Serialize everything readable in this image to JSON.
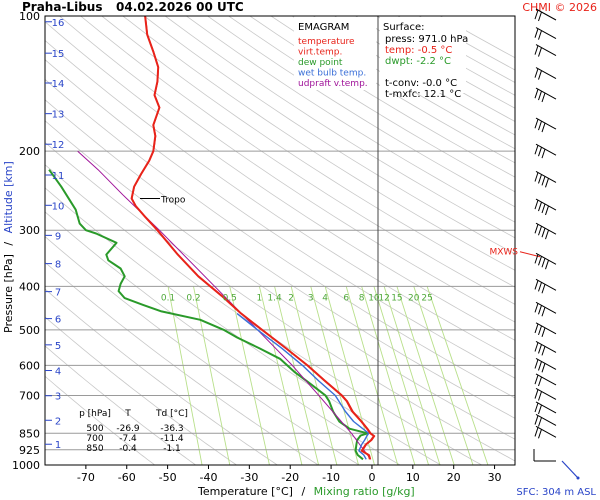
{
  "header": {
    "station": "Praha-Libus",
    "datetime": "04.02.2026 00 UTC",
    "copyright": "CHMI © 2026"
  },
  "axes": {
    "ylabel_pressure": "Pressure [hPa]",
    "ylabel_sep": "/",
    "ylabel_altitude": "Altitude [km]",
    "xlabel_temp": "Temperature [°C]",
    "xlabel_sep": "/",
    "xlabel_mix": "Mixing ratio [g/kg]"
  },
  "legend": {
    "title": "EMAGRAM",
    "items": [
      {
        "label": "temperature",
        "color": "#e8231a"
      },
      {
        "label": "virt.temp.",
        "color": "#e8231a"
      },
      {
        "label": "dew point",
        "color": "#2a9a2a"
      },
      {
        "label": "wet bulb temp.",
        "color": "#3a6fd8"
      },
      {
        "label": "udpraft v.temp.",
        "color": "#a0149a"
      }
    ]
  },
  "surface": {
    "title": "Surface:",
    "lines": [
      {
        "text": "press: 971.0 hPa",
        "color": "#000000"
      },
      {
        "text": "temp: -0.5 °C",
        "color": "#e8231a"
      },
      {
        "text": "dwpt: -2.2 °C",
        "color": "#2a9a2a"
      },
      {
        "text": "",
        "color": "#000000"
      },
      {
        "text": "t-conv: -0.0 °C",
        "color": "#000000"
      },
      {
        "text": "t-mxfc: 12.1 °C",
        "color": "#000000"
      }
    ]
  },
  "table": {
    "headers": [
      "p [hPa]",
      "T",
      "Td [°C]"
    ],
    "rows": [
      [
        "500",
        "-26.9",
        "-36.3"
      ],
      [
        "700",
        "-7.4",
        "-11.4"
      ],
      [
        "850",
        "-0.4",
        "-1.1"
      ]
    ]
  },
  "annotations": {
    "tropo": "Tropo",
    "mxws": "MXWS",
    "sfc": "SFC: 304 m ASL"
  },
  "chart_data": {
    "type": "line",
    "title": "Praha-Libus 04.02.2026 00 UTC",
    "xlabel": "Temperature [°C] / Mixing ratio [g/kg]",
    "ylabel": "Pressure [hPa] / Altitude [km]",
    "xlim": [
      -80,
      35
    ],
    "ylim": [
      1000,
      100
    ],
    "y_scale": "log",
    "x_ticks": [
      -70,
      -60,
      -50,
      -40,
      -30,
      -20,
      -10,
      0,
      10,
      20,
      30
    ],
    "p_ticks": [
      100,
      200,
      300,
      400,
      500,
      600,
      700,
      850,
      925,
      1000
    ],
    "p_grid": [
      100,
      200,
      300,
      400,
      500,
      600,
      700,
      850,
      925,
      1000
    ],
    "altitude_km": [
      {
        "km": 1,
        "p": 899
      },
      {
        "km": 2,
        "p": 795
      },
      {
        "km": 3,
        "p": 701
      },
      {
        "km": 4,
        "p": 616
      },
      {
        "km": 5,
        "p": 540
      },
      {
        "km": 6,
        "p": 472
      },
      {
        "km": 7,
        "p": 411
      },
      {
        "km": 8,
        "p": 356
      },
      {
        "km": 9,
        "p": 308
      },
      {
        "km": 10,
        "p": 264
      },
      {
        "km": 11,
        "p": 226
      },
      {
        "km": 12,
        "p": 193
      },
      {
        "km": 13,
        "p": 165
      },
      {
        "km": 14,
        "p": 141
      },
      {
        "km": 15,
        "p": 121
      },
      {
        "km": 16,
        "p": 103
      }
    ],
    "mixing_ratio_labels": [
      "0.1",
      "0.2",
      "0.5",
      "1",
      "1.4",
      "2",
      "3",
      "4",
      "6",
      "8",
      "10",
      "12",
      "15",
      "20",
      "25"
    ],
    "mixing_ratio_values": [
      0.1,
      0.2,
      0.5,
      1,
      1.4,
      2,
      3,
      4,
      6,
      8,
      10,
      12,
      15,
      20,
      25
    ],
    "series": [
      {
        "name": "temperature",
        "color": "#e8231a",
        "points": [
          [
            971,
            -0.5
          ],
          [
            950,
            -0.8
          ],
          [
            930,
            -2.5
          ],
          [
            900,
            -1.5
          ],
          [
            880,
            -0.2
          ],
          [
            862,
            0.5
          ],
          [
            850,
            -0.4
          ],
          [
            830,
            -1.2
          ],
          [
            800,
            -2.6
          ],
          [
            760,
            -4.8
          ],
          [
            720,
            -6.2
          ],
          [
            700,
            -7.4
          ],
          [
            650,
            -11.5
          ],
          [
            600,
            -15.8
          ],
          [
            550,
            -21.0
          ],
          [
            500,
            -26.9
          ],
          [
            460,
            -32.0
          ],
          [
            420,
            -36.8
          ],
          [
            380,
            -42.5
          ],
          [
            340,
            -47.5
          ],
          [
            300,
            -52.5
          ],
          [
            280,
            -55.5
          ],
          [
            265,
            -57.8
          ],
          [
            255,
            -58.8
          ],
          [
            240,
            -58.2
          ],
          [
            225,
            -56.5
          ],
          [
            210,
            -54.5
          ],
          [
            200,
            -53.5
          ],
          [
            185,
            -53.0
          ],
          [
            175,
            -53.5
          ],
          [
            160,
            -52.0
          ],
          [
            150,
            -53.2
          ],
          [
            140,
            -52.5
          ],
          [
            130,
            -52.3
          ],
          [
            120,
            -53.5
          ],
          [
            110,
            -55.0
          ],
          [
            100,
            -55.5
          ]
        ]
      },
      {
        "name": "virt.temp.",
        "color": "#e8231a",
        "points": [
          [
            971,
            -0.3
          ],
          [
            950,
            -0.6
          ],
          [
            930,
            -2.3
          ],
          [
            900,
            -1.3
          ],
          [
            880,
            0.0
          ],
          [
            862,
            0.7
          ],
          [
            850,
            -0.2
          ],
          [
            830,
            -1.0
          ],
          [
            800,
            -2.4
          ],
          [
            760,
            -4.6
          ],
          [
            720,
            -6.0
          ],
          [
            700,
            -7.2
          ],
          [
            650,
            -11.3
          ],
          [
            600,
            -15.6
          ],
          [
            550,
            -20.9
          ],
          [
            500,
            -26.8
          ],
          [
            460,
            -31.9
          ],
          [
            420,
            -36.7
          ],
          [
            380,
            -42.4
          ],
          [
            340,
            -47.4
          ],
          [
            300,
            -52.4
          ],
          [
            280,
            -55.4
          ],
          [
            265,
            -57.7
          ],
          [
            255,
            -58.7
          ],
          [
            240,
            -58.1
          ],
          [
            225,
            -56.4
          ],
          [
            210,
            -54.4
          ],
          [
            200,
            -53.4
          ],
          [
            185,
            -52.9
          ],
          [
            175,
            -53.4
          ],
          [
            160,
            -51.9
          ],
          [
            150,
            -53.1
          ],
          [
            140,
            -52.4
          ],
          [
            130,
            -52.2
          ],
          [
            120,
            -53.4
          ],
          [
            110,
            -54.9
          ],
          [
            100,
            -55.4
          ]
        ]
      },
      {
        "name": "dew point",
        "color": "#2a9a2a",
        "points": [
          [
            971,
            -2.2
          ],
          [
            950,
            -3.5
          ],
          [
            930,
            -4.0
          ],
          [
            900,
            -3.8
          ],
          [
            880,
            -3.6
          ],
          [
            860,
            -2.8
          ],
          [
            850,
            -1.1
          ],
          [
            830,
            -5.5
          ],
          [
            800,
            -8.0
          ],
          [
            760,
            -9.5
          ],
          [
            720,
            -10.5
          ],
          [
            700,
            -11.4
          ],
          [
            660,
            -15.0
          ],
          [
            620,
            -19.0
          ],
          [
            580,
            -22.5
          ],
          [
            550,
            -27.5
          ],
          [
            520,
            -33.0
          ],
          [
            500,
            -36.3
          ],
          [
            475,
            -42.0
          ],
          [
            455,
            -51.5
          ],
          [
            440,
            -56.0
          ],
          [
            425,
            -60.5
          ],
          [
            410,
            -62.0
          ],
          [
            395,
            -61.5
          ],
          [
            380,
            -60.5
          ],
          [
            365,
            -61.5
          ],
          [
            350,
            -64.5
          ],
          [
            340,
            -65.0
          ],
          [
            320,
            -62.5
          ],
          [
            305,
            -67.5
          ],
          [
            300,
            -70.0
          ],
          [
            290,
            -71.5
          ],
          [
            270,
            -72.5
          ],
          [
            240,
            -76.0
          ],
          [
            220,
            -79.0
          ]
        ]
      },
      {
        "name": "wet bulb temp.",
        "color": "#3a6fd8",
        "points": [
          [
            971,
            -1.4
          ],
          [
            950,
            -2.0
          ],
          [
            930,
            -3.2
          ],
          [
            900,
            -2.5
          ],
          [
            880,
            -1.8
          ],
          [
            860,
            -1.2
          ],
          [
            850,
            -0.8
          ],
          [
            800,
            -4.5
          ],
          [
            760,
            -6.5
          ],
          [
            700,
            -9.0
          ],
          [
            650,
            -13.0
          ],
          [
            600,
            -17.0
          ],
          [
            550,
            -22.0
          ],
          [
            500,
            -28.0
          ],
          [
            460,
            -33.0
          ]
        ]
      },
      {
        "name": "udpraft v.temp.",
        "color": "#a0149a",
        "points": [
          [
            971,
            -0.3
          ],
          [
            900,
            -3.0
          ],
          [
            850,
            -5.0
          ],
          [
            800,
            -7.5
          ],
          [
            700,
            -13.0
          ],
          [
            600,
            -19.5
          ],
          [
            500,
            -28.0
          ],
          [
            400,
            -38.5
          ],
          [
            300,
            -52.0
          ],
          [
            250,
            -61.0
          ],
          [
            220,
            -67.0
          ],
          [
            200,
            -72.0
          ]
        ]
      }
    ],
    "winds": [
      {
        "p": 960,
        "barbs": 0,
        "calm": true
      },
      {
        "p": 850,
        "barbs": 2
      },
      {
        "p": 800,
        "barbs": 2
      },
      {
        "p": 750,
        "barbs": 2
      },
      {
        "p": 700,
        "barbs": 2
      },
      {
        "p": 650,
        "barbs": 2
      },
      {
        "p": 600,
        "barbs": 3
      },
      {
        "p": 550,
        "barbs": 3
      },
      {
        "p": 500,
        "barbs": 3
      },
      {
        "p": 450,
        "barbs": 3
      },
      {
        "p": 400,
        "barbs": 3
      },
      {
        "p": 350,
        "barbs": 4
      },
      {
        "p": 300,
        "barbs": 4
      },
      {
        "p": 265,
        "barbs": 4
      },
      {
        "p": 230,
        "barbs": 4
      },
      {
        "p": 200,
        "barbs": 3
      },
      {
        "p": 175,
        "barbs": 3
      },
      {
        "p": 150,
        "barbs": 3
      },
      {
        "p": 135,
        "barbs": 2
      },
      {
        "p": 120,
        "barbs": 2
      },
      {
        "p": 110,
        "barbs": 2
      },
      {
        "p": 100,
        "barbs": 2
      }
    ],
    "tropopause_p": 255,
    "mxws_p": 335
  }
}
